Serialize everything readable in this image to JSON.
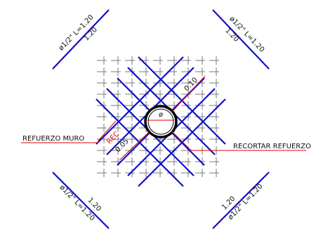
{
  "colors": {
    "background": "#ffffff",
    "rebar": "#1010c8",
    "grid": "#7a7a7a",
    "annotation": "#e00000",
    "text": "#111111",
    "pipe": "#000000"
  },
  "bars": {
    "top_left": {
      "spec": "ø1/2\" L=1.20",
      "length": "1.20"
    },
    "top_right": {
      "spec": "ø1/2\" L=1.20",
      "length": "1.20"
    },
    "bottom_left": {
      "spec": "ø1/2\" L=1.20",
      "length": "1.20"
    },
    "bottom_right": {
      "spec": "ø1/2\" L=1.20",
      "length": "1.20"
    }
  },
  "center": {
    "pipe_symbol": "ø",
    "dim_outer": "0.10",
    "dim_inner": "0.05",
    "rec_label": "REC"
  },
  "labels": {
    "refuerzo_muro": "REFUERZO MURO",
    "recortar_refuerzo": "RECORTAR REFUERZO"
  }
}
